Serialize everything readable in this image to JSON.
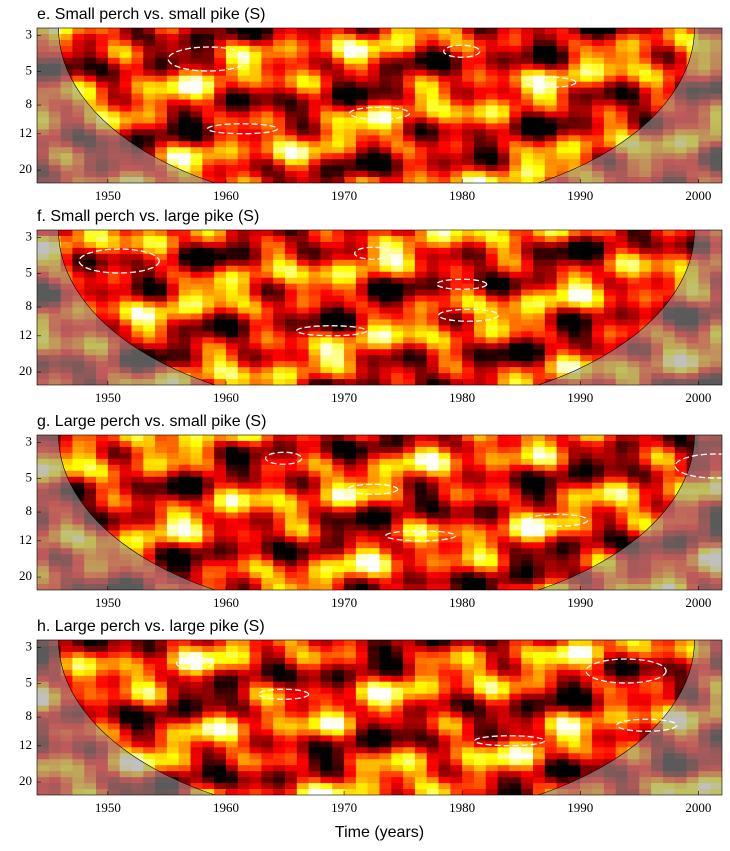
{
  "chart_data": [
    {
      "type": "heatmap",
      "title": "e. Small perch vs. small pike (S)",
      "xlim": [
        1944,
        2002
      ],
      "xticks": [
        1950,
        1960,
        1970,
        1980,
        1990,
        2000
      ],
      "ylim": [
        2.7,
        24
      ],
      "yticks": [
        3,
        5,
        8,
        12,
        20
      ],
      "y_scale": "log",
      "y_inverted": true
    },
    {
      "type": "heatmap",
      "title": "f. Small perch vs. large pike (S)",
      "xlim": [
        1944,
        2002
      ],
      "xticks": [
        1950,
        1960,
        1970,
        1980,
        1990,
        2000
      ],
      "ylim": [
        2.7,
        24
      ],
      "yticks": [
        3,
        5,
        8,
        12,
        20
      ],
      "y_scale": "log",
      "y_inverted": true
    },
    {
      "type": "heatmap",
      "title": "g. Large perch vs. small pike (S)",
      "xlim": [
        1944,
        2002
      ],
      "xticks": [
        1950,
        1960,
        1970,
        1980,
        1990,
        2000
      ],
      "ylim": [
        2.7,
        24
      ],
      "yticks": [
        3,
        5,
        8,
        12,
        20
      ],
      "y_scale": "log",
      "y_inverted": true
    },
    {
      "type": "heatmap",
      "title": "h. Large perch vs. large pike (S)",
      "xlim": [
        1944,
        2002
      ],
      "xticks": [
        1950,
        1960,
        1970,
        1980,
        1990,
        2000
      ],
      "ylim": [
        2.7,
        24
      ],
      "yticks": [
        3,
        5,
        8,
        12,
        20
      ],
      "y_scale": "log",
      "y_inverted": true,
      "xlabel": "Time (years)"
    }
  ]
}
